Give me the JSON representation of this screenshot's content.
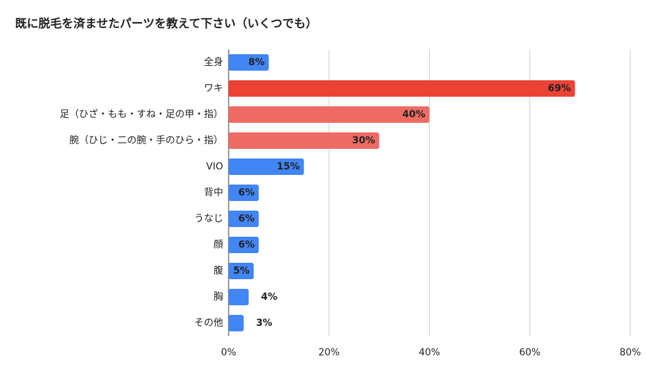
{
  "chart_data": {
    "type": "bar",
    "orientation": "horizontal",
    "title": "既に脱毛を済ませたパーツを教えて下さい（いくつでも）",
    "categories": [
      "全身",
      "ワキ",
      "足（ひざ・もも・すね・足の甲・指）",
      "腕（ひじ・二の腕・手のひら・指）",
      "VIO",
      "背中",
      "うなじ",
      "顔",
      "腹",
      "胸",
      "その他"
    ],
    "values": [
      8,
      69,
      40,
      30,
      15,
      6,
      6,
      6,
      5,
      4,
      3
    ],
    "value_labels": [
      "8%",
      "69%",
      "40%",
      "30%",
      "15%",
      "6%",
      "6%",
      "6%",
      "5%",
      "4%",
      "3%"
    ],
    "colors": [
      "#4285f4",
      "#ea4335",
      "#ee6b63",
      "#ee6b63",
      "#4285f4",
      "#4285f4",
      "#4285f4",
      "#4285f4",
      "#4285f4",
      "#4285f4",
      "#4285f4"
    ],
    "xlim": [
      0,
      80
    ],
    "xticks": [
      {
        "value": 0,
        "label": "0%"
      },
      {
        "value": 20,
        "label": "20%"
      },
      {
        "value": 40,
        "label": "40%"
      },
      {
        "value": 60,
        "label": "60%"
      },
      {
        "value": 80,
        "label": "80%"
      }
    ],
    "grid": true
  }
}
